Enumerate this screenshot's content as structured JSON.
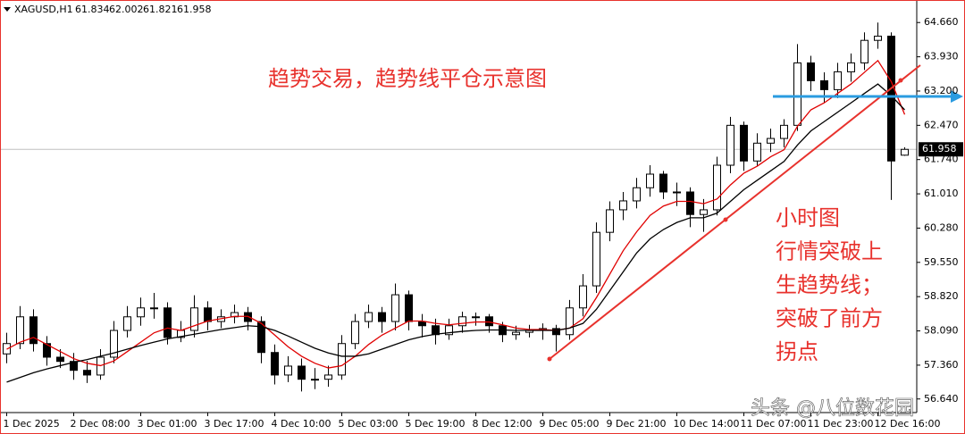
{
  "chart_data": {
    "type": "candlestick",
    "symbol": "XAGUSD,H1",
    "title": "趋势交易，趋势线平仓示意图",
    "note": [
      "小时图",
      "行情突破上",
      "生趋势线；",
      "突破了前方",
      "拐点"
    ],
    "watermark": "头条 @八位数花园",
    "categories": [
      "1 Dec 2025",
      null,
      null,
      null,
      null,
      "2 Dec 08:00",
      null,
      null,
      null,
      null,
      "3 Dec 01:00",
      null,
      null,
      null,
      null,
      "3 Dec 17:00",
      null,
      null,
      null,
      null,
      "4 Dec 10:00",
      null,
      null,
      null,
      null,
      "5 Dec 03:00",
      null,
      null,
      null,
      null,
      "5 Dec 19:00",
      null,
      null,
      null,
      null,
      "8 Dec 12:00",
      null,
      null,
      null,
      null,
      "9 Dec 05:00",
      null,
      null,
      null,
      null,
      "9 Dec 21:00",
      null,
      null,
      null,
      null,
      "10 Dec 14:00",
      null,
      null,
      null,
      null,
      "11 Dec 07:00",
      null,
      null,
      null,
      null,
      "11 Dec 23:00",
      null,
      null,
      null,
      null,
      "12 Dec 16:00",
      null,
      null
    ],
    "ohlc": {
      "open": [
        57.6,
        57.82,
        58.39,
        57.82,
        57.53,
        57.44,
        57.25,
        57.15,
        57.53,
        58.1,
        58.39,
        58.58,
        58.58,
        57.95,
        58.1,
        58.58,
        58.29,
        58.39,
        58.48,
        58.29,
        57.63,
        57.15,
        57.34,
        57.06,
        57.06,
        57.15,
        57.82,
        58.29,
        58.48,
        58.29,
        58.86,
        58.29,
        58.2,
        58.01,
        58.2,
        58.39,
        58.39,
        58.2,
        58.01,
        58.06,
        58.1,
        58.14,
        58.01,
        58.58,
        59.05,
        60.19,
        60.67,
        60.86,
        61.14,
        61.43,
        61.05,
        61.05,
        60.57,
        60.67,
        61.62,
        62.47,
        61.71,
        62.09,
        62.19,
        62.47,
        63.8,
        63.42,
        63.23,
        63.61,
        63.8,
        64.28,
        64.37,
        61.834
      ],
      "high": [
        58.05,
        58.62,
        58.55,
        57.98,
        57.7,
        57.62,
        57.45,
        57.7,
        58.3,
        58.62,
        58.8,
        58.9,
        58.7,
        58.3,
        58.85,
        58.72,
        58.55,
        58.65,
        58.6,
        58.4,
        57.8,
        57.55,
        57.5,
        57.3,
        57.35,
        58.0,
        58.45,
        58.65,
        58.6,
        59.1,
        58.95,
        58.45,
        58.35,
        58.35,
        58.5,
        58.48,
        58.45,
        58.28,
        58.2,
        58.22,
        58.25,
        58.22,
        58.75,
        59.3,
        60.4,
        60.85,
        61.05,
        61.35,
        61.62,
        61.5,
        61.25,
        61.15,
        60.9,
        61.8,
        62.65,
        62.55,
        62.3,
        62.4,
        62.6,
        64.2,
        63.95,
        63.6,
        63.8,
        64.0,
        64.45,
        64.66,
        64.45,
        62.002
      ],
      "low": [
        57.4,
        57.7,
        57.65,
        57.35,
        57.3,
        57.05,
        56.98,
        57.05,
        57.4,
        57.95,
        58.2,
        58.35,
        57.8,
        57.85,
        57.95,
        58.1,
        58.15,
        58.25,
        58.1,
        57.4,
        56.95,
        57.0,
        56.8,
        56.85,
        56.9,
        57.05,
        57.7,
        58.15,
        58.05,
        58.1,
        58.1,
        57.95,
        57.8,
        57.9,
        58.05,
        58.2,
        58.05,
        57.85,
        57.9,
        57.95,
        57.9,
        57.65,
        57.9,
        58.4,
        58.9,
        60.0,
        60.45,
        60.7,
        60.95,
        60.9,
        60.75,
        60.3,
        60.2,
        60.55,
        61.45,
        61.5,
        61.6,
        61.9,
        62.0,
        62.35,
        63.2,
        62.95,
        63.05,
        63.4,
        63.65,
        64.1,
        60.88,
        61.821
      ],
      "close": [
        57.82,
        58.39,
        57.82,
        57.53,
        57.44,
        57.25,
        57.15,
        57.53,
        58.1,
        58.39,
        58.58,
        58.58,
        57.95,
        58.1,
        58.58,
        58.29,
        58.39,
        58.48,
        58.29,
        57.63,
        57.15,
        57.34,
        57.06,
        57.06,
        57.15,
        57.82,
        58.29,
        58.48,
        58.29,
        58.86,
        58.29,
        58.2,
        58.01,
        58.2,
        58.39,
        58.39,
        58.2,
        58.01,
        58.06,
        58.1,
        58.14,
        58.01,
        58.58,
        59.05,
        60.19,
        60.67,
        60.86,
        61.14,
        61.43,
        61.05,
        61.05,
        60.57,
        60.67,
        61.62,
        62.47,
        61.71,
        62.09,
        62.19,
        62.47,
        63.8,
        63.42,
        63.23,
        63.61,
        63.8,
        64.28,
        64.37,
        61.71,
        61.958
      ]
    },
    "lines": [
      {
        "color": "#e00000",
        "values": [
          57.7,
          57.85,
          57.95,
          57.8,
          57.65,
          57.5,
          57.4,
          57.35,
          57.45,
          57.65,
          57.85,
          58.05,
          58.15,
          58.1,
          58.2,
          58.3,
          58.35,
          58.4,
          58.4,
          58.25,
          58.0,
          57.75,
          57.55,
          57.4,
          57.3,
          57.35,
          57.55,
          57.8,
          58.0,
          58.15,
          58.3,
          58.3,
          58.25,
          58.22,
          58.25,
          58.28,
          58.28,
          58.22,
          58.15,
          58.12,
          58.12,
          58.1,
          58.15,
          58.35,
          58.8,
          59.3,
          59.8,
          60.2,
          60.55,
          60.75,
          60.85,
          60.85,
          60.8,
          60.9,
          61.2,
          61.45,
          61.6,
          61.8,
          61.95,
          62.45,
          62.8,
          62.95,
          63.15,
          63.35,
          63.6,
          63.85,
          63.4,
          62.7
        ]
      },
      {
        "color": "#000000",
        "values": [
          57.0,
          57.1,
          57.2,
          57.28,
          57.35,
          57.42,
          57.48,
          57.55,
          57.62,
          57.7,
          57.78,
          57.85,
          57.92,
          57.97,
          58.02,
          58.07,
          58.12,
          58.16,
          58.2,
          58.18,
          58.1,
          57.98,
          57.85,
          57.72,
          57.62,
          57.55,
          57.55,
          57.6,
          57.7,
          57.8,
          57.9,
          57.97,
          58.02,
          58.05,
          58.08,
          58.1,
          58.11,
          58.11,
          58.1,
          58.1,
          58.1,
          58.1,
          58.15,
          58.25,
          58.55,
          58.95,
          59.35,
          59.75,
          60.05,
          60.25,
          60.4,
          60.5,
          60.5,
          60.6,
          60.85,
          61.1,
          61.3,
          61.5,
          61.7,
          62.05,
          62.35,
          62.55,
          62.75,
          62.95,
          63.15,
          63.35,
          63.1,
          62.8
        ]
      }
    ],
    "ylim": [
      56.35,
      65.14
    ],
    "yticks": [
      {
        "value": 64.66,
        "label": "64.660"
      },
      {
        "value": 63.93,
        "label": "63.930"
      },
      {
        "value": 63.2,
        "label": "63.200"
      },
      {
        "value": 62.47,
        "label": "62.470"
      },
      {
        "value": 61.74,
        "label": "61.740"
      },
      {
        "value": 61.01,
        "label": "61.010"
      },
      {
        "value": 60.28,
        "label": "60.280"
      },
      {
        "value": 59.55,
        "label": "59.550"
      },
      {
        "value": 58.82,
        "label": "58.820"
      },
      {
        "value": 58.09,
        "label": "58.090"
      },
      {
        "value": 57.36,
        "label": "57.360"
      },
      {
        "value": 56.64,
        "label": "56.640"
      }
    ]
  }
}
